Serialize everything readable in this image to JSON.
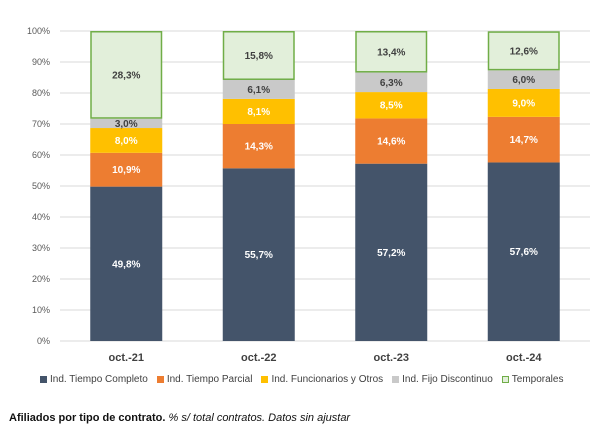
{
  "chart_data": {
    "type": "stacked-bar",
    "categories": [
      "oct.-21",
      "oct.-22",
      "oct.-23",
      "oct.-24"
    ],
    "ylim": [
      0,
      100
    ],
    "yticks": [
      "0%",
      "10%",
      "20%",
      "30%",
      "40%",
      "50%",
      "60%",
      "70%",
      "80%",
      "90%",
      "100%"
    ],
    "grid": true,
    "legend_position": "bottom",
    "series": [
      {
        "name": "Ind. Tiempo Completo",
        "color": "#44546A",
        "label_color": "#ffffff",
        "bordered": false,
        "values": [
          49.8,
          55.7,
          57.2,
          57.6
        ],
        "labels": [
          "49,8%",
          "55,7%",
          "57,2%",
          "57,6%"
        ]
      },
      {
        "name": "Ind. Tiempo Parcial",
        "color": "#ED7D31",
        "label_color": "#ffffff",
        "bordered": false,
        "values": [
          10.9,
          14.3,
          14.6,
          14.7
        ],
        "labels": [
          "10,9%",
          "14,3%",
          "14,6%",
          "14,7%"
        ]
      },
      {
        "name": "Ind. Funcionarios y Otros",
        "color": "#FFC000",
        "label_color": "#ffffff",
        "bordered": false,
        "values": [
          8.0,
          8.1,
          8.5,
          9.0
        ],
        "labels": [
          "8,0%",
          "8,1%",
          "8,5%",
          "9,0%"
        ]
      },
      {
        "name": "Ind. Fijo Discontinuo",
        "color": "#C9C9C9",
        "label_color": "#404040",
        "bordered": false,
        "values": [
          3.0,
          6.1,
          6.3,
          6.0
        ],
        "labels": [
          "3,0%",
          "6,1%",
          "6,3%",
          "6,0%"
        ]
      },
      {
        "name": "Temporales",
        "color": "#E2EFDA",
        "label_color": "#404040",
        "bordered": true,
        "border_color": "#70AD47",
        "values": [
          28.3,
          15.8,
          13.4,
          12.6
        ],
        "labels": [
          "28,3%",
          "15,8%",
          "13,4%",
          "12,6%"
        ]
      }
    ]
  },
  "caption": {
    "title": "Afiliados por tipo de contrato.",
    "subtitle": "% s/ total contratos. Datos sin ajustar"
  }
}
